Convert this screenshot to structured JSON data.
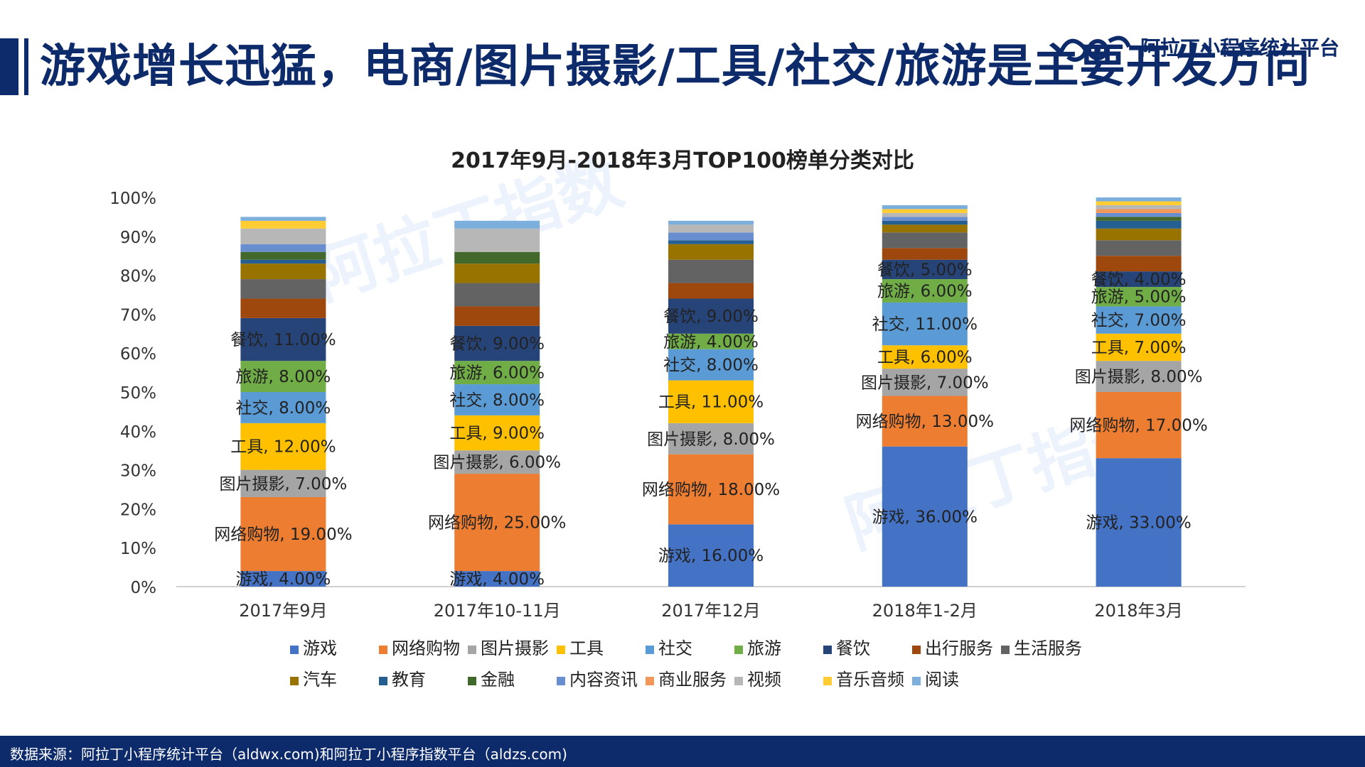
{
  "page_title": "游戏增长迅猛，电商/图片摄影/工具/社交/旅游是主要开发方向",
  "logo": {
    "text": "阿拉丁小程序统计平台",
    "icon": "aladdin-logo-icon"
  },
  "watermark": {
    "text": "阿拉丁指数"
  },
  "footer": {
    "source": "数据来源：阿拉丁小程序统计平台（aldwx.com)和阿拉丁小程序指数平台（aldzs.com)"
  },
  "colors": {
    "title": "#0d2b6b",
    "footer_bg": "#0d2b6b"
  },
  "chart_data": {
    "type": "bar",
    "stacked": true,
    "title": "2017年9月-2018年3月TOP100榜单分类对比",
    "xlabel": "",
    "ylabel": "",
    "ylim": [
      0,
      100
    ],
    "yticks": [
      "0%",
      "10%",
      "20%",
      "30%",
      "40%",
      "50%",
      "60%",
      "70%",
      "80%",
      "90%",
      "100%"
    ],
    "categories": [
      "2017年9月",
      "2017年10-11月",
      "2017年12月",
      "2018年1-2月",
      "2018年3月"
    ],
    "legend_position": "bottom",
    "grid": false,
    "series": [
      {
        "name": "游戏",
        "color": "#4472c4",
        "values": [
          4,
          4,
          16,
          36,
          33
        ],
        "labels": [
          "游戏, 4.00%",
          "游戏, 4.00%",
          "游戏, 16.00%",
          "游戏, 36.00%",
          "游戏, 33.00%"
        ]
      },
      {
        "name": "网络购物",
        "color": "#ed7d31",
        "values": [
          19,
          25,
          18,
          13,
          17
        ],
        "labels": [
          "网络购物, 19.00%",
          "网络购物, 25.00%",
          "网络购物, 18.00%",
          "网络购物, 13.00%",
          "网络购物, 17.00%"
        ]
      },
      {
        "name": "图片摄影",
        "color": "#a5a5a5",
        "values": [
          7,
          6,
          8,
          7,
          8
        ],
        "labels": [
          "图片摄影, 7.00%",
          "图片摄影, 6.00%",
          "图片摄影, 8.00%",
          "图片摄影, 7.00%",
          "图片摄影, 8.00%"
        ]
      },
      {
        "name": "工具",
        "color": "#ffc000",
        "values": [
          12,
          9,
          11,
          6,
          7
        ],
        "labels": [
          "工具, 12.00%",
          "工具, 9.00%",
          "工具, 11.00%",
          "工具, 6.00%",
          "工具, 7.00%"
        ]
      },
      {
        "name": "社交",
        "color": "#5b9bd5",
        "values": [
          8,
          8,
          8,
          11,
          7
        ],
        "labels": [
          "社交, 8.00%",
          "社交, 8.00%",
          "社交, 8.00%",
          "社交, 11.00%",
          "社交, 7.00%"
        ]
      },
      {
        "name": "旅游",
        "color": "#70ad47",
        "values": [
          8,
          6,
          4,
          6,
          5
        ],
        "labels": [
          "旅游, 8.00%",
          "旅游, 6.00%",
          "旅游, 4.00%",
          "旅游, 6.00%",
          "旅游, 5.00%"
        ]
      },
      {
        "name": "餐饮",
        "color": "#264478",
        "values": [
          11,
          9,
          9,
          5,
          4
        ],
        "labels": [
          "餐饮, 11.00%",
          "餐饮, 9.00%",
          "餐饮, 9.00%",
          "餐饮, 5.00%",
          "餐饮, 4.00%"
        ]
      },
      {
        "name": "出行服务",
        "color": "#9e480e",
        "values": [
          5,
          5,
          4,
          3,
          4
        ],
        "labels": [
          "",
          "",
          "",
          "",
          ""
        ]
      },
      {
        "name": "生活服务",
        "color": "#636363",
        "values": [
          5,
          6,
          6,
          4,
          4
        ],
        "labels": [
          "",
          "",
          "",
          "",
          ""
        ]
      },
      {
        "name": "汽车",
        "color": "#997300",
        "values": [
          4,
          5,
          4,
          2,
          3
        ],
        "labels": [
          "",
          "",
          "",
          "",
          ""
        ]
      },
      {
        "name": "教育",
        "color": "#255e91",
        "values": [
          1,
          0,
          1,
          1,
          2
        ],
        "labels": [
          "",
          "",
          "",
          "",
          ""
        ]
      },
      {
        "name": "金融",
        "color": "#43682b",
        "values": [
          2,
          3,
          0,
          0,
          1
        ],
        "labels": [
          "",
          "",
          "",
          "",
          ""
        ]
      },
      {
        "name": "内容资讯",
        "color": "#698ed0",
        "values": [
          2,
          0,
          2,
          1,
          1
        ],
        "labels": [
          "",
          "",
          "",
          "",
          ""
        ]
      },
      {
        "name": "商业服务",
        "color": "#f1975a",
        "values": [
          0,
          0,
          0,
          0,
          1
        ],
        "labels": [
          "",
          "",
          "",
          "",
          ""
        ]
      },
      {
        "name": "视频",
        "color": "#b7b7b7",
        "values": [
          4,
          6,
          2,
          1,
          1
        ],
        "labels": [
          "",
          "",
          "",
          "",
          ""
        ]
      },
      {
        "name": "音乐音频",
        "color": "#ffcd33",
        "values": [
          2,
          0,
          0,
          1,
          1
        ],
        "labels": [
          "",
          "",
          "",
          "",
          ""
        ]
      },
      {
        "name": "阅读",
        "color": "#7cafdd",
        "values": [
          1,
          2,
          1,
          1,
          1
        ],
        "labels": [
          "",
          "",
          "",
          "",
          ""
        ]
      }
    ]
  }
}
